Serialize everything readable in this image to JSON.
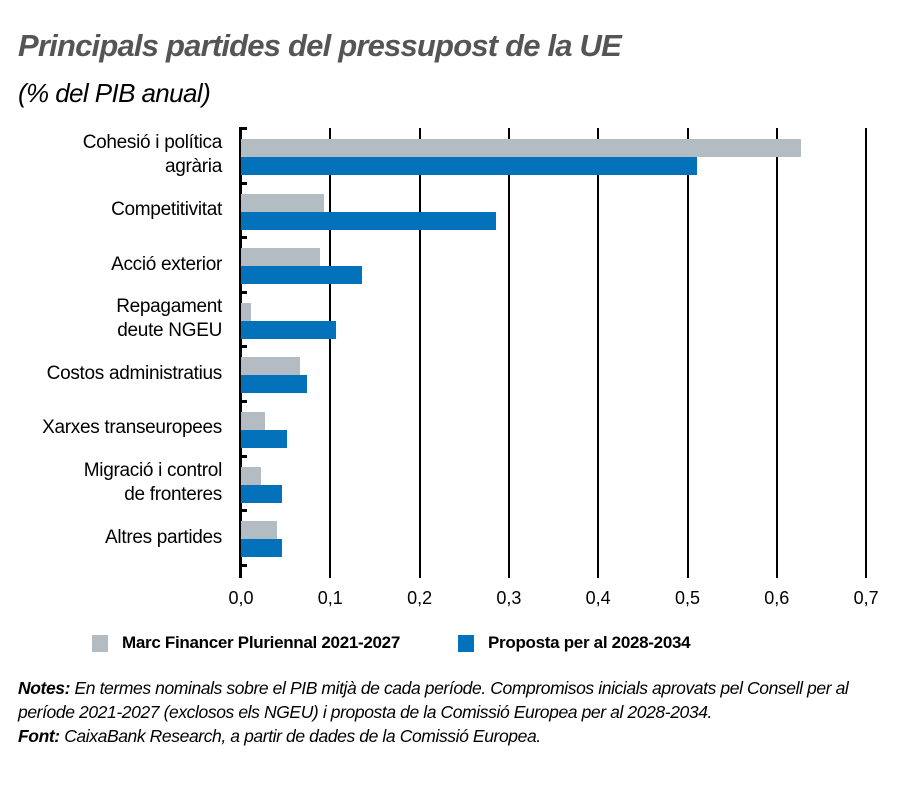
{
  "header": {
    "title": "Principals partides del pressupost de la UE",
    "subtitle": "(% del PIB anual)"
  },
  "legend": [
    {
      "label": "Marc Financer Pluriennal 2021-2027",
      "color": "#b3bcc2"
    },
    {
      "label": "Proposta per al 2028-2034",
      "color": "#0472ba"
    }
  ],
  "x_ticks": [
    "0,0",
    "0,1",
    "0,2",
    "0,3",
    "0,4",
    "0,5",
    "0,6",
    "0,7"
  ],
  "notes": {
    "notes_label": "Notes:",
    "notes_text": " En termes nominals sobre el PIB mitjà de cada període. Compromisos inicials aprovats pel Consell per al període 2021-2027 (exclosos els NGEU) i proposta de la Comissió Europea per al 2028-2034.",
    "source_label": "Font:",
    "source_text": " CaixaBank Research, a partir de dades de la Comissió Europea."
  },
  "chart_data": {
    "type": "bar",
    "orientation": "horizontal",
    "title": "Principals partides del pressupost de la UE",
    "subtitle": "(% del PIB anual)",
    "xlabel": "",
    "ylabel": "",
    "xlim": [
      0,
      0.7
    ],
    "x_ticks": [
      0,
      0.1,
      0.2,
      0.3,
      0.4,
      0.5,
      0.6,
      0.7
    ],
    "grid": "vertical",
    "legend_position": "bottom",
    "categories": [
      "Cohesió i política\nagrària",
      "Competitivitat",
      "Acció exterior",
      "Repagament\ndeute NGEU",
      "Costos administratius",
      "Xarxes transeuropees",
      "Migració i control\nde fronteres",
      "Altres partides"
    ],
    "series": [
      {
        "name": "Marc Financer Pluriennal 2021-2027",
        "color": "#b3bcc2",
        "values": [
          0.627,
          0.093,
          0.088,
          0.011,
          0.066,
          0.027,
          0.022,
          0.04
        ]
      },
      {
        "name": "Proposta per al 2028-2034",
        "color": "#0472ba",
        "values": [
          0.511,
          0.285,
          0.135,
          0.106,
          0.074,
          0.052,
          0.046,
          0.046
        ]
      }
    ]
  }
}
